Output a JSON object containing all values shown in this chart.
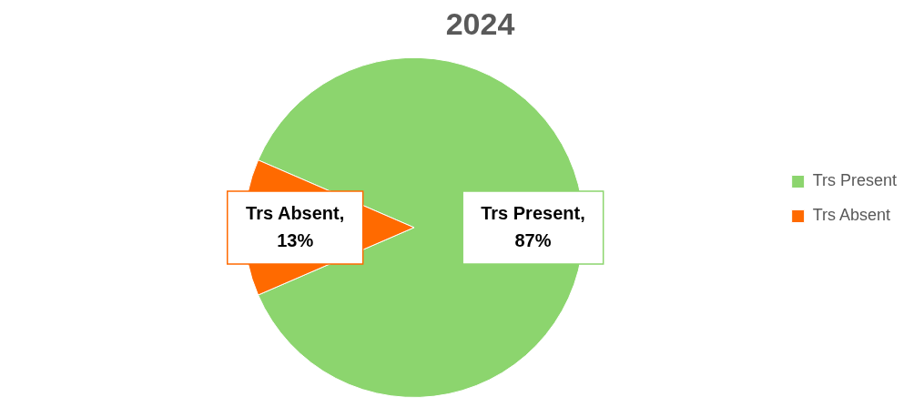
{
  "chart_data": {
    "type": "pie",
    "title": "2024",
    "categories": [
      "Trs Present",
      "Trs Absent"
    ],
    "values": [
      87,
      13
    ],
    "colors": [
      "#8cd56e",
      "#ff6a00"
    ],
    "value_labels": [
      "Trs Present, 87%",
      "Trs Absent, 13%"
    ],
    "legend": "right"
  }
}
